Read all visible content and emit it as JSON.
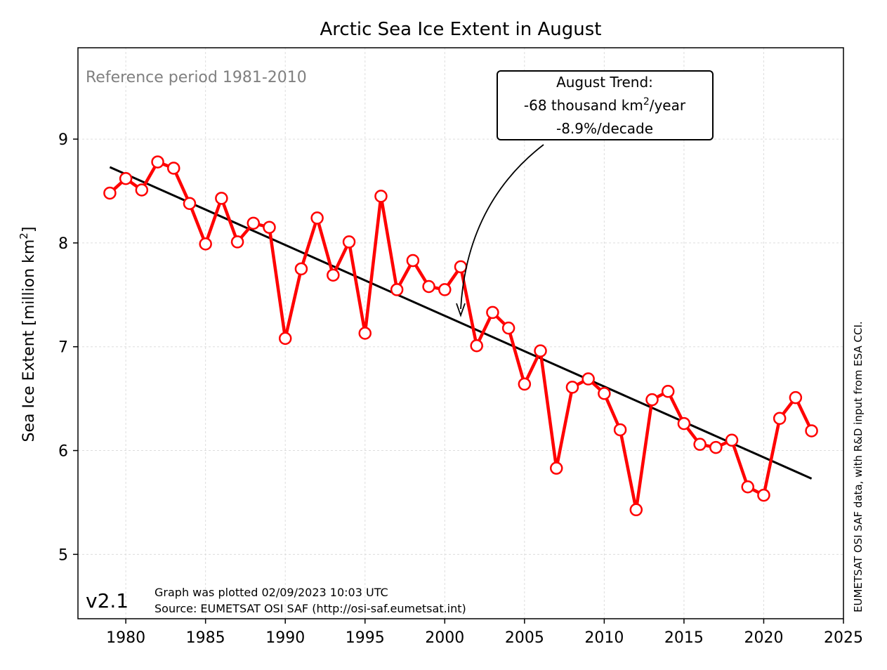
{
  "chart_data": {
    "type": "line",
    "title": "Arctic Sea Ice Extent in August",
    "xlabel": "",
    "ylabel_main": "Sea Ice Extent [million km",
    "ylabel_sup": "2",
    "ylabel_tail": "]",
    "xlim": [
      1977,
      2025
    ],
    "ylim": [
      4.38,
      9.88
    ],
    "x_ticks": [
      1980,
      1985,
      1990,
      1995,
      2000,
      2005,
      2010,
      2015,
      2020,
      2025
    ],
    "y_ticks": [
      5,
      6,
      7,
      8,
      9
    ],
    "grid": true,
    "series": [
      {
        "color": "#ff0000",
        "marker": "open-circle",
        "x": [
          1979,
          1980,
          1981,
          1982,
          1983,
          1984,
          1985,
          1986,
          1987,
          1988,
          1989,
          1990,
          1991,
          1992,
          1993,
          1994,
          1995,
          1996,
          1997,
          1998,
          1999,
          2000,
          2001,
          2002,
          2003,
          2004,
          2005,
          2006,
          2007,
          2008,
          2009,
          2010,
          2011,
          2012,
          2013,
          2014,
          2015,
          2016,
          2017,
          2018,
          2019,
          2020,
          2021,
          2022,
          2023
        ],
        "y": [
          8.48,
          8.62,
          8.51,
          8.78,
          8.72,
          8.38,
          7.99,
          8.43,
          8.01,
          8.19,
          8.15,
          7.08,
          7.75,
          8.24,
          7.69,
          8.01,
          7.13,
          8.45,
          7.55,
          7.83,
          7.58,
          7.55,
          7.77,
          7.01,
          7.33,
          7.18,
          6.64,
          6.96,
          5.83,
          6.61,
          6.69,
          6.55,
          6.2,
          5.43,
          6.49,
          6.57,
          6.26,
          6.06,
          6.03,
          6.1,
          5.65,
          5.57,
          6.31,
          6.51,
          6.19
        ]
      }
    ],
    "trend": {
      "color": "#000000",
      "x": [
        1979,
        2023
      ],
      "y": [
        8.73,
        5.73
      ]
    },
    "annotations": {
      "reference": "Reference period 1981-2010",
      "trend_box": {
        "line1": "August Trend:",
        "line2_main": "-68 thousand km",
        "line2_sup": "2",
        "line2_tail": "/year",
        "line3": "-8.9%/decade",
        "arrow_target": [
          2001,
          7.27
        ]
      },
      "version": "v2.1",
      "plotted": "Graph was plotted 02/09/2023 10:03 UTC",
      "source": "Source: EUMETSAT OSI SAF (http://osi-saf.eumetsat.int)",
      "side_credit": "EUMETSAT OSI SAF data, with R&D input from ESA CCI."
    }
  }
}
